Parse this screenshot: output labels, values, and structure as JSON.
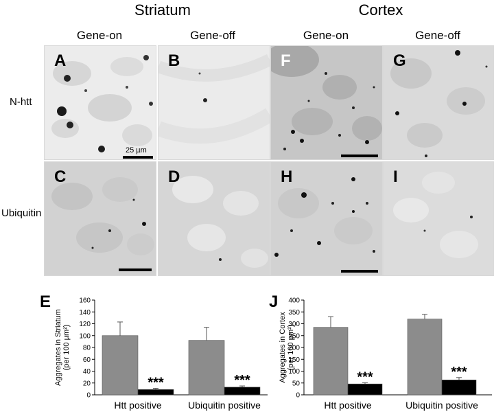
{
  "headers": {
    "striatum": "Striatum",
    "cortex": "Cortex",
    "gene_on_1": "Gene-on",
    "gene_off_1": "Gene-off",
    "gene_on_2": "Gene-on",
    "gene_off_2": "Gene-off"
  },
  "rows": {
    "nhtt": "N-htt",
    "ubiquitin": "Ubiquitin"
  },
  "panels": {
    "A": "A",
    "B": "B",
    "C": "C",
    "D": "D",
    "F": "F",
    "G": "G",
    "H": "H",
    "I": "I"
  },
  "scale_label": "25 µm",
  "chart_data": [
    {
      "type": "bar",
      "panel_label": "E",
      "ylabel": "Aggregates in Striatum\n(per 100 µm²)",
      "ylim": [
        0,
        160
      ],
      "yticks": [
        0,
        20,
        40,
        60,
        80,
        100,
        120,
        140,
        160
      ],
      "categories": [
        "Htt positive",
        "Ubiquitin positive"
      ],
      "series": [
        {
          "color": "#8c8c8c",
          "values": [
            100,
            92
          ],
          "errors": [
            23,
            22
          ]
        },
        {
          "color": "#000000",
          "values": [
            9,
            13
          ],
          "errors": [
            2,
            2
          ]
        }
      ],
      "annotations": [
        "***",
        "***"
      ]
    },
    {
      "type": "bar",
      "panel_label": "J",
      "ylabel": "Aggregates in Cortex\n(per 100 µm²)",
      "ylim": [
        0,
        400
      ],
      "yticks": [
        0,
        50,
        100,
        150,
        200,
        250,
        300,
        350,
        400
      ],
      "categories": [
        "Htt positive",
        "Ubiquitin positive"
      ],
      "series": [
        {
          "color": "#8c8c8c",
          "values": [
            285,
            320
          ],
          "errors": [
            45,
            20
          ]
        },
        {
          "color": "#000000",
          "values": [
            46,
            63
          ],
          "errors": [
            5,
            10
          ]
        }
      ],
      "annotations": [
        "***",
        "***"
      ]
    }
  ]
}
